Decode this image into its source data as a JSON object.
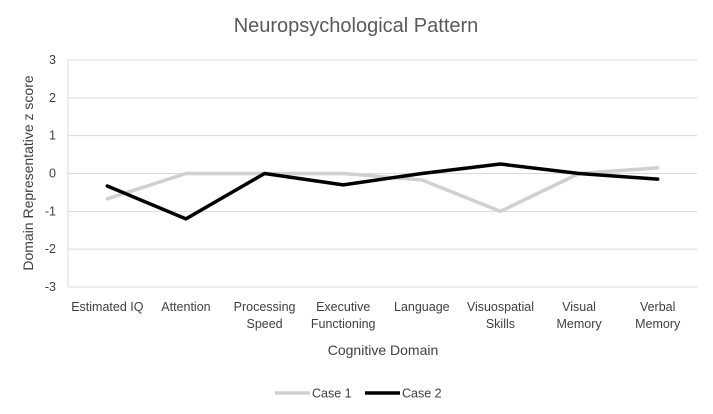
{
  "chart_data": {
    "type": "line",
    "title": "Neuropsychological Pattern",
    "xlabel": "Cognitive Domain",
    "ylabel": "Domain  Representative z score",
    "ylim": [
      -3,
      3
    ],
    "yticks": [
      3,
      2,
      1,
      0,
      -1,
      -2,
      -3
    ],
    "grid": true,
    "legend_position": "bottom",
    "categories": [
      [
        "Estimated IQ"
      ],
      [
        "Attention"
      ],
      [
        "Processing",
        "Speed"
      ],
      [
        "Executive",
        "Functioning"
      ],
      [
        "Language"
      ],
      [
        "Visuospatial",
        "Skills"
      ],
      [
        "Visual",
        "Memory"
      ],
      [
        "Verbal",
        "Memory"
      ]
    ],
    "series": [
      {
        "name": "Case 1",
        "color": "#d0d0d0",
        "values": [
          -0.67,
          0.0,
          0.0,
          0.0,
          -0.17,
          -1.0,
          0.0,
          0.15
        ]
      },
      {
        "name": "Case 2",
        "color": "#000000",
        "values": [
          -0.33,
          -1.2,
          0.0,
          -0.3,
          0.0,
          0.25,
          0.0,
          -0.15
        ]
      }
    ]
  }
}
